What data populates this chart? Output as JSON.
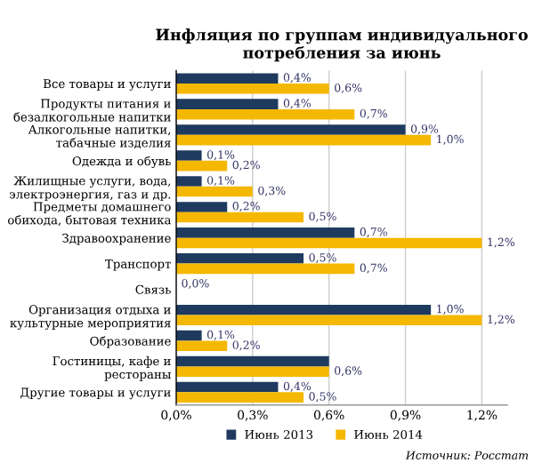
{
  "chart_data": {
    "type": "bar",
    "orientation": "horizontal",
    "title": "Инфляция по группам индивидуального потребления за июнь",
    "categories": [
      "Все товары и услуги",
      "Продукты питания и безалкогольные напитки",
      "Алкогольные напитки, табачные изделия",
      "Одежда и обувь",
      "Жилищные услуги, вода, электроэнергия, газ и др.",
      "Предметы домашнего обихода, бытовая техника",
      "Здравоохранение",
      "Транспорт",
      "Связь",
      "Организация отдыха и культурные мероприятия",
      "Образование",
      "Гостиницы, кафе и рестораны",
      "Другие товары и услуги"
    ],
    "series": [
      {
        "name": "Июнь 2013",
        "color": "#1f3a5f",
        "values": [
          0.4,
          0.4,
          0.9,
          0.1,
          0.1,
          0.2,
          0.7,
          0.5,
          0.0,
          1.0,
          0.1,
          0.6,
          0.4
        ],
        "value_labels": [
          "0,4%",
          "0,4%",
          "0,9%",
          "0,1%",
          "0,1%",
          "0,2%",
          "0,7%",
          "0,5%",
          "0,0%",
          "1,0%",
          "0,1%",
          null,
          "0,4%"
        ]
      },
      {
        "name": "Июнь 2014",
        "color": "#f5b800",
        "values": [
          0.6,
          0.7,
          1.0,
          0.2,
          0.3,
          0.5,
          1.2,
          0.7,
          0.0,
          1.2,
          0.2,
          0.6,
          0.5
        ],
        "value_labels": [
          "0,6%",
          "0,7%",
          "1,0%",
          "0,2%",
          "0,3%",
          "0,5%",
          "1,2%",
          "0,7%",
          null,
          "1,2%",
          "0,2%",
          "0,6%",
          "0,5%"
        ]
      }
    ],
    "xlim": [
      0,
      1.3
    ],
    "xticks": [
      {
        "value": 0,
        "label": "0,0%"
      },
      {
        "value": 0.3,
        "label": "0,3%"
      },
      {
        "value": 0.6,
        "label": "0,6%"
      },
      {
        "value": 0.9,
        "label": "0,9%"
      },
      {
        "value": 1.2,
        "label": "1,2%"
      }
    ],
    "grid": "x",
    "legend": "bottom",
    "annotations": [
      "Источник: Росстат"
    ]
  }
}
